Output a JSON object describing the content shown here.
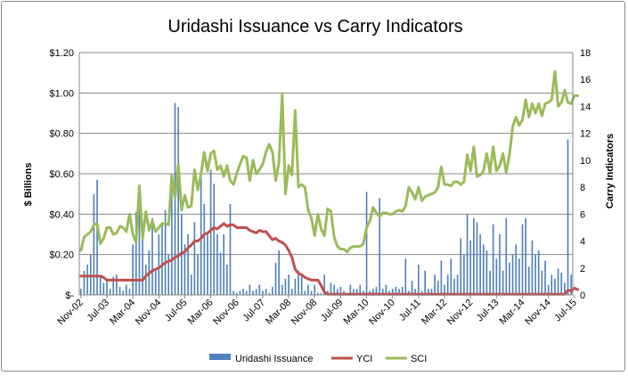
{
  "chart_data": {
    "type": "bar+line",
    "title": "Uridashi Issuance vs Carry Indicators",
    "ylabel_left": "$ Billions",
    "ylabel_right": "Carry Indicators",
    "ylim_left": [
      0,
      1.2
    ],
    "ylim_right": [
      0,
      18
    ],
    "yticks_left": [
      "$-",
      "$0.20",
      "$0.40",
      "$0.60",
      "$0.80",
      "$1.00",
      "$1.20"
    ],
    "yticks_right": [
      "0",
      "2",
      "4",
      "6",
      "8",
      "10",
      "12",
      "14",
      "16",
      "18"
    ],
    "xticks": [
      "Nov-02",
      "Jul-03",
      "Mar-04",
      "Nov-04",
      "Jul-05",
      "Mar-06",
      "Nov-06",
      "Jul-07",
      "Mar-08",
      "Nov-08",
      "Jul-09",
      "Mar-10",
      "Nov-10",
      "Jul-11",
      "Mar-12",
      "Nov-12",
      "Jul-13",
      "Mar-14",
      "Nov-14",
      "Jul-15"
    ],
    "x_start": "Nov-02",
    "x_end": "Dec-15",
    "grid": "horizontal",
    "legend_position": "bottom",
    "colors": {
      "bars": "#4f81bd",
      "yci": "#c0504d",
      "sci": "#9bbb59",
      "grid": "#878787"
    },
    "series": [
      {
        "name": "Uridashi Issuance",
        "kind": "bar",
        "axis": "left",
        "values": [
          0.03,
          0.12,
          0.15,
          0.2,
          0.5,
          0.57,
          0.1,
          0.06,
          0.08,
          0.03,
          0.09,
          0.1,
          0.04,
          0.02,
          0.05,
          0.03,
          0.25,
          0.41,
          0.45,
          0.35,
          0.15,
          0.22,
          0.38,
          0.12,
          0.3,
          0.35,
          0.42,
          0.2,
          0.55,
          0.95,
          0.93,
          0.4,
          0.25,
          0.3,
          0.1,
          0.36,
          0.2,
          0.6,
          0.45,
          0.3,
          0.62,
          0.55,
          0.3,
          0.21,
          0.3,
          0.15,
          0.45,
          0.02,
          0.01,
          0.02,
          0.03,
          0.02,
          0.05,
          0.02,
          0.03,
          0.05,
          0.02,
          0.03,
          0.01,
          0.04,
          0.16,
          0.22,
          0.05,
          0.08,
          0.1,
          0.03,
          0.08,
          0.12,
          0.1,
          0.02,
          0.05,
          0.02,
          0.05,
          0.01,
          0.01,
          0.1,
          0.02,
          0.06,
          0.05,
          0.03,
          0.04,
          0.02,
          0.01,
          0.05,
          0.03,
          0.03,
          0.05,
          0.02,
          0.51,
          0.02,
          0.03,
          0.04,
          0.48,
          0.03,
          0.05,
          0.02,
          0.03,
          0.04,
          0.03,
          0.04,
          0.18,
          0.02,
          0.07,
          0.03,
          0.15,
          0.02,
          0.12,
          0.03,
          0.03,
          0.1,
          0.07,
          0.17,
          0.05,
          0.1,
          0.18,
          0.08,
          0.1,
          0.28,
          0.2,
          0.4,
          0.27,
          0.38,
          0.36,
          0.3,
          0.25,
          0.22,
          0.12,
          0.35,
          0.18,
          0.3,
          0.12,
          0.38,
          0.16,
          0.2,
          0.25,
          0.18,
          0.35,
          0.38,
          0.14,
          0.27,
          0.2,
          0.22,
          0.12,
          0.17,
          0.05,
          0.1,
          0.08,
          0.13,
          0.11,
          0.06,
          0.77,
          0.1
        ]
      },
      {
        "name": "YCI",
        "kind": "line",
        "axis": "right",
        "values": [
          1.4,
          1.4,
          1.4,
          1.4,
          1.4,
          1.4,
          1.4,
          1.3,
          1.1,
          1.1,
          1.1,
          1.1,
          1.1,
          1.1,
          1.1,
          1.1,
          1.1,
          1.1,
          1.1,
          1.1,
          1.4,
          1.6,
          1.8,
          1.9,
          2.0,
          2.2,
          2.4,
          2.5,
          2.6,
          2.8,
          2.9,
          3.1,
          3.2,
          3.5,
          3.7,
          4.0,
          4.0,
          4.2,
          4.5,
          4.6,
          4.8,
          5.0,
          4.9,
          5.1,
          5.3,
          5.1,
          5.2,
          5.2,
          5.0,
          5.0,
          5.0,
          5.0,
          4.8,
          4.7,
          4.6,
          4.8,
          4.7,
          4.7,
          4.4,
          4.1,
          4.2,
          4.0,
          3.9,
          3.7,
          3.3,
          2.8,
          1.9,
          1.6,
          1.5,
          1.3,
          1.2,
          1.1,
          1.1,
          1.1,
          0.7,
          0.2,
          0.05,
          0.05,
          0.05,
          0.05,
          0.05,
          0.05,
          0.05,
          0.05,
          0.05,
          0.05,
          0.05,
          0.05,
          0.05,
          0.05,
          0.05,
          0.05,
          0.05,
          0.05,
          0.05,
          0.05,
          0.05,
          0.05,
          0.05,
          0.05,
          0.05,
          0.05,
          0.05,
          0.05,
          0.05,
          0.05,
          0.05,
          0.05,
          0.05,
          0.05,
          0.05,
          0.05,
          0.05,
          0.05,
          0.05,
          0.05,
          0.05,
          0.05,
          0.05,
          0.05,
          0.05,
          0.05,
          0.05,
          0.05,
          0.05,
          0.05,
          0.05,
          0.05,
          0.05,
          0.05,
          0.05,
          0.05,
          0.05,
          0.05,
          0.05,
          0.05,
          0.05,
          0.05,
          0.05,
          0.05,
          0.05,
          0.05,
          0.05,
          0.05,
          0.05,
          0.05,
          0.05,
          0.05,
          0.05,
          0.05,
          0.35,
          0.3,
          0.5,
          0.4
        ]
      },
      {
        "name": "SCI",
        "kind": "line",
        "axis": "right",
        "values": [
          3.3,
          4.3,
          4.5,
          4.7,
          5.2,
          5.3,
          3.8,
          4.2,
          5.0,
          5.0,
          4.5,
          4.6,
          5.1,
          5.0,
          4.7,
          6.0,
          4.5,
          3.9,
          8.1,
          4.2,
          6.2,
          4.8,
          5.5,
          4.7,
          5.0,
          5.3,
          5.3,
          5.2,
          8.9,
          7.2,
          9.7,
          6.3,
          7.4,
          6.5,
          6.6,
          9.3,
          7.8,
          9.0,
          10.6,
          9.2,
          10.5,
          10.7,
          9.3,
          9.6,
          8.8,
          9.6,
          8.5,
          8.2,
          9.0,
          9.7,
          10.3,
          10.2,
          8.5,
          10.0,
          9.0,
          9.3,
          9.7,
          10.6,
          11.2,
          10.6,
          8.5,
          9.8,
          14.9,
          7.5,
          9.6,
          8.9,
          13.7,
          8.0,
          8.2,
          8.0,
          6.3,
          5.7,
          4.4,
          6.0,
          4.9,
          4.4,
          6.4,
          6.2,
          4.3,
          3.6,
          3.4,
          3.4,
          3.2,
          3.5,
          3.6,
          3.6,
          3.6,
          3.8,
          5.0,
          5.5,
          6.5,
          6.1,
          5.8,
          6.1,
          6.1,
          6.0,
          6.0,
          6.2,
          6.3,
          6.2,
          6.6,
          8.0,
          7.6,
          7.1,
          8.0,
          7.0,
          7.3,
          7.4,
          7.5,
          7.6,
          8.0,
          9.5,
          8.2,
          8.2,
          8.1,
          8.4,
          8.4,
          8.2,
          8.4,
          10.4,
          9.2,
          11.0,
          8.8,
          8.9,
          9.2,
          10.5,
          9.1,
          11.0,
          9.2,
          9.6,
          10.5,
          9.1,
          10.4,
          12.5,
          13.2,
          12.6,
          13.0,
          14.5,
          13.2,
          14.2,
          13.5,
          14.2,
          13.3,
          14.2,
          14.3,
          14.5,
          16.6,
          14.0,
          14.3,
          15.2,
          14.3,
          14.2,
          14.8,
          14.8
        ]
      }
    ]
  }
}
